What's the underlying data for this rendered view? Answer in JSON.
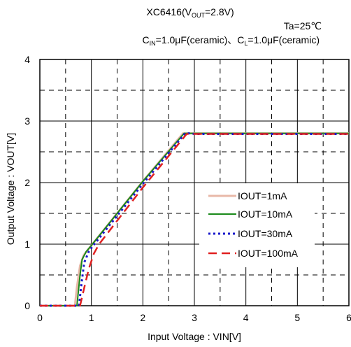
{
  "chart_data": {
    "type": "line",
    "title": {
      "main": "XC6416(V",
      "sub": "OUT",
      "tail": "=2.8V)"
    },
    "condition_temp": "Ta=25℃",
    "condition_caps": {
      "cin_main": "C",
      "cin_sub": "IN",
      "cin_tail": "=1.0μF(ceramic)、",
      "cl_main": "C",
      "cl_sub": "L",
      "cl_tail": "=1.0μF(ceramic)"
    },
    "xlabel": "Input Voltage : VIN[V]",
    "ylabel": "Output Voltage : VOUT[V]",
    "xlim": [
      0,
      6
    ],
    "ylim": [
      0,
      4
    ],
    "xticks": [
      "0",
      "1",
      "2",
      "3",
      "4",
      "5",
      "6"
    ],
    "yticks": [
      "0",
      "1",
      "2",
      "3",
      "4"
    ],
    "grid": true,
    "legend_position": "center-right",
    "series": [
      {
        "name": "IOUT=1mA",
        "color": "#e8b8a8",
        "style": "solid",
        "x": [
          0,
          0.68,
          0.72,
          0.78,
          0.85,
          1.0,
          2.0,
          2.78,
          2.85,
          3.0,
          4.0,
          6.0
        ],
        "y": [
          0,
          0,
          0.3,
          0.65,
          0.82,
          0.98,
          2.02,
          2.8,
          2.8,
          2.8,
          2.8,
          2.8
        ]
      },
      {
        "name": "IOUT=10mA",
        "color": "#1a8a1a",
        "style": "solid",
        "x": [
          0,
          0.72,
          0.78,
          0.82,
          0.9,
          1.0,
          2.0,
          2.8,
          2.85,
          3.0,
          4.0,
          6.0
        ],
        "y": [
          0,
          0,
          0.5,
          0.75,
          0.88,
          0.98,
          2.02,
          2.8,
          2.8,
          2.8,
          2.8,
          2.8
        ]
      },
      {
        "name": "IOUT=30mA",
        "color": "#1a1acc",
        "style": "dotted",
        "x": [
          0,
          0.76,
          0.8,
          0.86,
          0.95,
          1.02,
          2.0,
          2.82,
          2.9,
          3.0,
          4.0,
          6.0
        ],
        "y": [
          0,
          0,
          0.3,
          0.7,
          0.88,
          0.96,
          1.98,
          2.8,
          2.8,
          2.79,
          2.79,
          2.79
        ]
      },
      {
        "name": "IOUT=100mA",
        "color": "#e02020",
        "style": "dashed",
        "x": [
          0,
          0.78,
          0.85,
          0.95,
          1.05,
          1.15,
          2.0,
          2.85,
          2.95,
          3.05,
          4.0,
          6.0
        ],
        "y": [
          0,
          0,
          0.25,
          0.6,
          0.85,
          1.0,
          1.92,
          2.79,
          2.79,
          2.79,
          2.79,
          2.79
        ]
      }
    ]
  }
}
